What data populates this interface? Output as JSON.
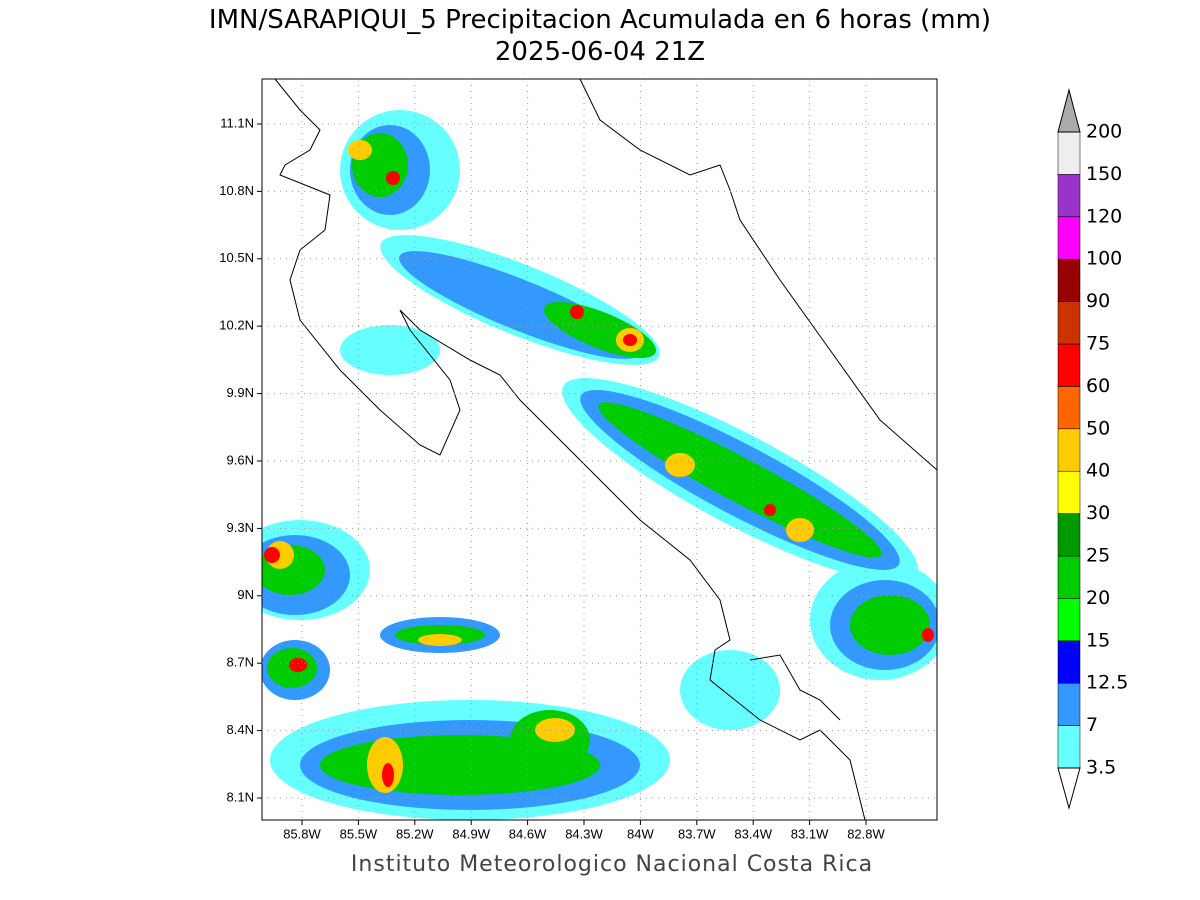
{
  "title": "IMN/SARAPIQUI_5 Precipitacion Acumulada en 6 horas (mm)",
  "subtitle": "2025-06-04 21Z",
  "map": {
    "lat_labels": [
      "11.1N",
      "10.8N",
      "10.5N",
      "10.2N",
      "9.9N",
      "9.6N",
      "9.3N",
      "9N",
      "8.7N",
      "8.4N",
      "8.1N"
    ],
    "lon_labels": [
      "85.8W",
      "85.5W",
      "85.2W",
      "84.9W",
      "84.6W",
      "84.3W",
      "84W",
      "83.7W",
      "83.4W",
      "83.1W",
      "82.8W"
    ]
  },
  "colorbar": {
    "labels": [
      "3.5",
      "7",
      "12.5",
      "15",
      "20",
      "25",
      "30",
      "40",
      "50",
      "60",
      "75",
      "90",
      "100",
      "120",
      "150",
      "200"
    ],
    "colors": [
      "#66ffff",
      "#3399ff",
      "#0000ff",
      "#00ff00",
      "#00cc00",
      "#009900",
      "#ffff00",
      "#ffcc00",
      "#ff6600",
      "#ff0000",
      "#cc3300",
      "#990000",
      "#ff00ff",
      "#9933cc",
      "#eeeeee"
    ],
    "over_color": "#aaaaaa",
    "under_color": "#ffffff"
  },
  "footer": "Instituto Meteorologico Nacional Costa Rica"
}
